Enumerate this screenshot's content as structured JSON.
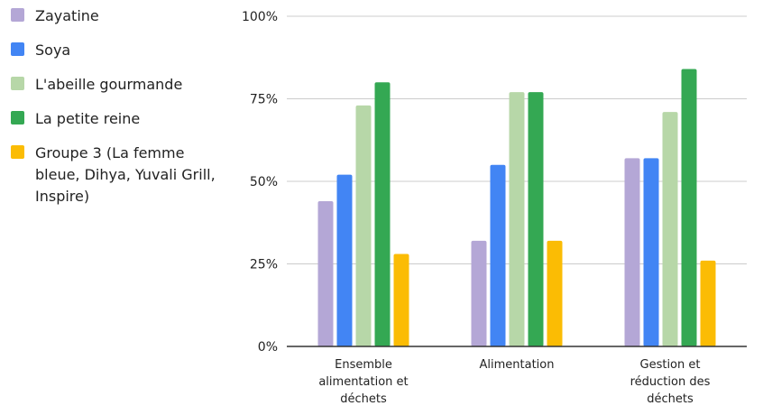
{
  "chart_data": {
    "type": "bar",
    "categories": [
      [
        "Ensemble",
        "alimentation et",
        "déchets"
      ],
      [
        "Alimentation"
      ],
      [
        "Gestion et",
        "réduction des",
        "déchets"
      ]
    ],
    "series": [
      {
        "name": "Zayatine",
        "color": "#b4a7d6",
        "values": [
          44,
          32,
          57
        ]
      },
      {
        "name": "Soya",
        "color": "#4285f4",
        "values": [
          52,
          55,
          57
        ]
      },
      {
        "name": "L'abeille gourmande",
        "color": "#b7d7a8",
        "values": [
          73,
          77,
          71
        ]
      },
      {
        "name": "La petite reine",
        "color": "#34a853",
        "values": [
          80,
          77,
          84
        ]
      },
      {
        "name": "Groupe 3 (La femme bleue, Dihya, Yuvali Grill, Inspire)",
        "color": "#fbbc04",
        "values": [
          28,
          32,
          26
        ]
      }
    ],
    "yticks": [
      "0%",
      "25%",
      "50%",
      "75%",
      "100%"
    ],
    "ylim": [
      0,
      100
    ],
    "grid": true,
    "legend_position": "left"
  }
}
